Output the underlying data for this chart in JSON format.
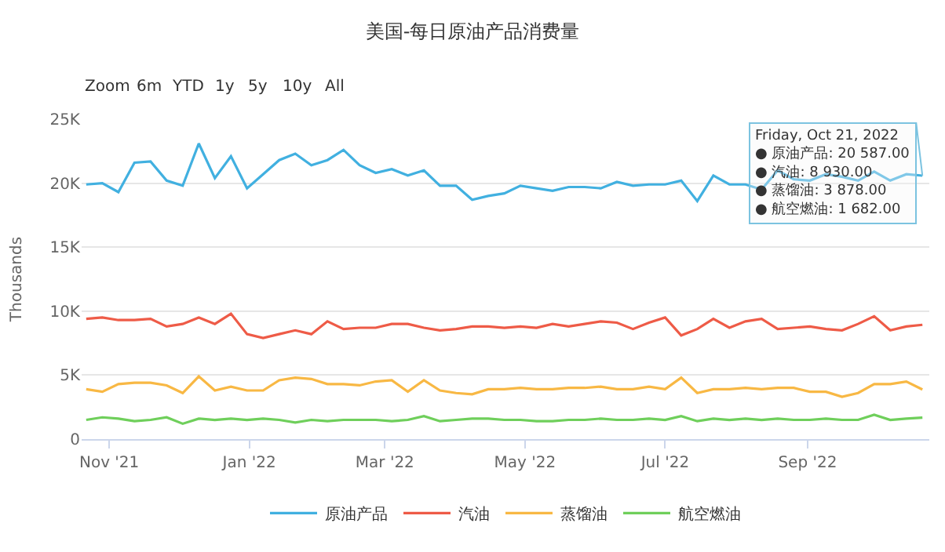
{
  "chart_data": {
    "type": "line",
    "title": "美国-每日原油产品消费量",
    "ylabel": "Thousands",
    "x": [
      "2021-10-22",
      "2021-10-29",
      "2021-11-05",
      "2021-11-12",
      "2021-11-19",
      "2021-11-26",
      "2021-12-03",
      "2021-12-10",
      "2021-12-17",
      "2021-12-24",
      "2021-12-31",
      "2022-01-07",
      "2022-01-14",
      "2022-01-21",
      "2022-01-28",
      "2022-02-04",
      "2022-02-11",
      "2022-02-18",
      "2022-02-25",
      "2022-03-04",
      "2022-03-11",
      "2022-03-18",
      "2022-03-25",
      "2022-04-01",
      "2022-04-08",
      "2022-04-15",
      "2022-04-22",
      "2022-04-29",
      "2022-05-06",
      "2022-05-13",
      "2022-05-20",
      "2022-05-27",
      "2022-06-03",
      "2022-06-10",
      "2022-06-17",
      "2022-06-24",
      "2022-07-01",
      "2022-07-08",
      "2022-07-15",
      "2022-07-22",
      "2022-07-29",
      "2022-08-05",
      "2022-08-12",
      "2022-08-19",
      "2022-08-26",
      "2022-09-02",
      "2022-09-09",
      "2022-09-16",
      "2022-09-23",
      "2022-09-30",
      "2022-10-07",
      "2022-10-14",
      "2022-10-21"
    ],
    "xlim": [
      "2021-10-20",
      "2022-10-24"
    ],
    "xticks": [
      {
        "value": "2021-11-01",
        "label": "Nov '21"
      },
      {
        "value": "2022-01-01",
        "label": "Jan '22"
      },
      {
        "value": "2022-03-01",
        "label": "Mar '22"
      },
      {
        "value": "2022-05-01",
        "label": "May '22"
      },
      {
        "value": "2022-07-01",
        "label": "Jul '22"
      },
      {
        "value": "2022-09-01",
        "label": "Sep '22"
      }
    ],
    "ylim": [
      0,
      25000
    ],
    "yticks": [
      {
        "value": 0,
        "label": "0"
      },
      {
        "value": 5000,
        "label": "5K"
      },
      {
        "value": 10000,
        "label": "10K"
      },
      {
        "value": 15000,
        "label": "15K"
      },
      {
        "value": 20000,
        "label": "20K"
      },
      {
        "value": 25000,
        "label": "25K"
      }
    ],
    "grid": "y",
    "legend": "bottom",
    "marker": "none",
    "line_style": "solid",
    "series": [
      {
        "name": "原油产品",
        "color": "#41b0e0",
        "values": [
          19900,
          20000,
          19300,
          21600,
          21700,
          20200,
          19800,
          23100,
          20400,
          22100,
          19600,
          20700,
          21800,
          22300,
          21400,
          21800,
          22600,
          21400,
          20800,
          21100,
          20600,
          21000,
          19800,
          19800,
          18700,
          19000,
          19200,
          19800,
          19600,
          19400,
          19700,
          19700,
          19600,
          20100,
          19800,
          19900,
          19900,
          20200,
          18600,
          20600,
          19900,
          19900,
          19500,
          21000,
          20300,
          20200,
          20700,
          20500,
          20200,
          20900,
          20200,
          20700,
          20587
        ]
      },
      {
        "name": "汽油",
        "color": "#ee5b47",
        "values": [
          9400,
          9500,
          9300,
          9300,
          9400,
          8800,
          9000,
          9500,
          9000,
          9800,
          8200,
          7900,
          8200,
          8500,
          8200,
          9200,
          8600,
          8700,
          8700,
          9000,
          9000,
          8700,
          8500,
          8600,
          8800,
          8800,
          8700,
          8800,
          8700,
          9000,
          8800,
          9000,
          9200,
          9100,
          8600,
          9100,
          9500,
          8100,
          8600,
          9400,
          8700,
          9200,
          9400,
          8600,
          8700,
          8800,
          8600,
          8500,
          9000,
          9600,
          8500,
          8800,
          8930
        ]
      },
      {
        "name": "蒸馏油",
        "color": "#f8b844",
        "values": [
          3900,
          3700,
          4300,
          4400,
          4400,
          4200,
          3600,
          4900,
          3800,
          4100,
          3800,
          3800,
          4600,
          4800,
          4700,
          4300,
          4300,
          4200,
          4500,
          4600,
          3700,
          4600,
          3800,
          3600,
          3500,
          3900,
          3900,
          4000,
          3900,
          3900,
          4000,
          4000,
          4100,
          3900,
          3900,
          4100,
          3900,
          4800,
          3600,
          3900,
          3900,
          4000,
          3900,
          4000,
          4000,
          3700,
          3700,
          3300,
          3600,
          4300,
          4300,
          4500,
          3878
        ]
      },
      {
        "name": "航空燃油",
        "color": "#6fcf5b",
        "values": [
          1500,
          1700,
          1600,
          1400,
          1500,
          1700,
          1200,
          1600,
          1500,
          1600,
          1500,
          1600,
          1500,
          1300,
          1500,
          1400,
          1500,
          1500,
          1500,
          1400,
          1500,
          1800,
          1400,
          1500,
          1600,
          1600,
          1500,
          1500,
          1400,
          1400,
          1500,
          1500,
          1600,
          1500,
          1500,
          1600,
          1500,
          1800,
          1400,
          1600,
          1500,
          1600,
          1500,
          1600,
          1500,
          1500,
          1600,
          1500,
          1500,
          1900,
          1500,
          1600,
          1682
        ]
      }
    ],
    "annotations": [
      "Zoom",
      "6m",
      "YTD",
      "1y",
      "5y",
      "10y",
      "All",
      {
        "text": "Friday, Oct 21, 2022\n● 原油产品: 20 587.00\n● 汽油: 8 930.00\n● 蒸馏油: 3 878.00\n● 航空燃油: 1 682.00",
        "x": "2022-10-21",
        "y": 20587
      }
    ]
  }
}
